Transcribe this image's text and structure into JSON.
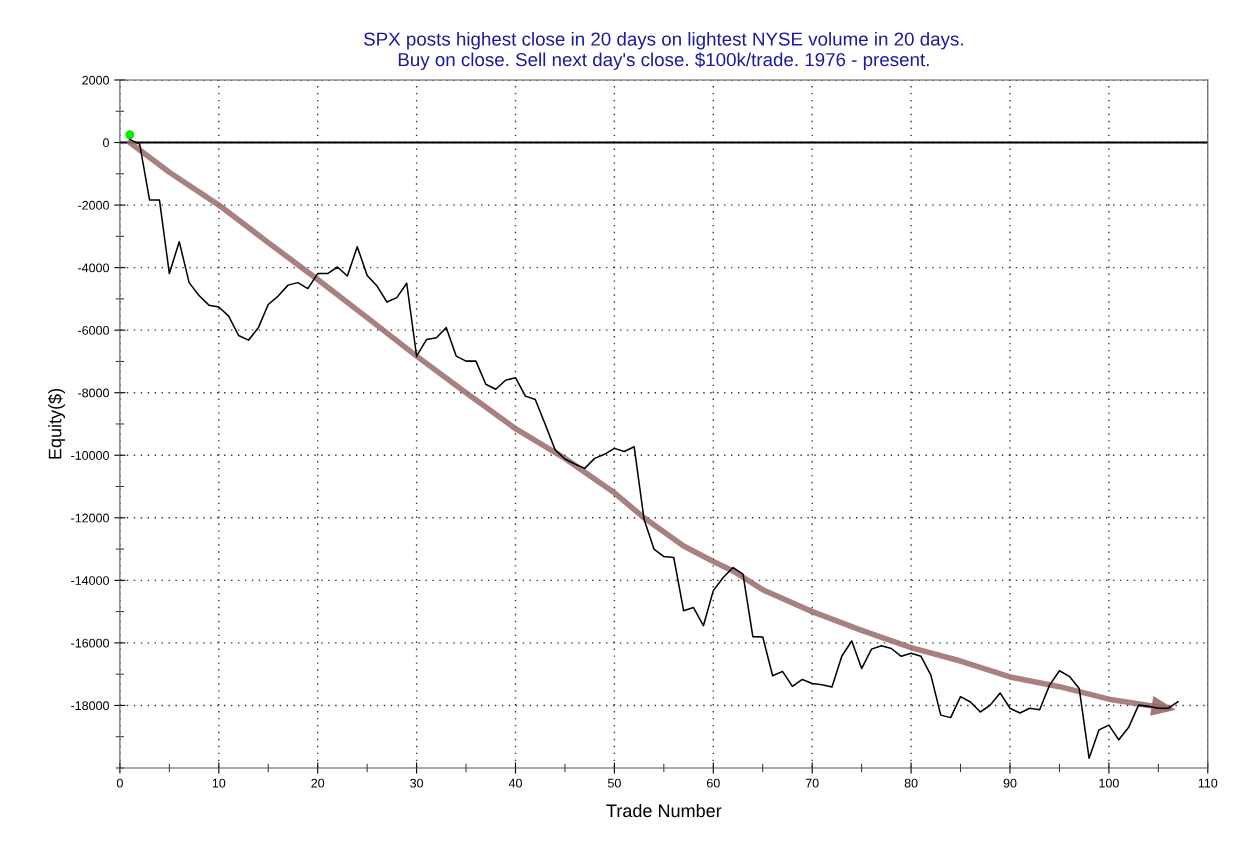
{
  "chart_data": {
    "type": "line",
    "title": "SPX posts highest close in 20 days on lightest NYSE volume in 20 days.\nBuy on close. Sell next day's close. $100k/trade. 1976 - present.",
    "xlabel": "Trade Number",
    "ylabel": "Equity($)",
    "series": [
      {
        "color": "#000000",
        "x": [
          1,
          2,
          3,
          4,
          5,
          6,
          7,
          8,
          9,
          10,
          11,
          12,
          13,
          14,
          15,
          16,
          17,
          18,
          19,
          20,
          21,
          22,
          23,
          24,
          25,
          26,
          27,
          28,
          29,
          30,
          31,
          32,
          33,
          34,
          35,
          36,
          37,
          38,
          39,
          40,
          41,
          42,
          43,
          44,
          45,
          46,
          47,
          48,
          49,
          50,
          51,
          52,
          53,
          54,
          55,
          56,
          57,
          58,
          59,
          60,
          61,
          62,
          63,
          64,
          65,
          66,
          67,
          68,
          69,
          70,
          71,
          72,
          73,
          74,
          75,
          76,
          77,
          78,
          79,
          80,
          81,
          82,
          83,
          84,
          85,
          86,
          87,
          88,
          89,
          90,
          91,
          92,
          93,
          94,
          95,
          96,
          97,
          98,
          99,
          100,
          101,
          102,
          103,
          104,
          105,
          106,
          107
        ],
        "values": [
          100,
          -50,
          -1840,
          -1840,
          -4190,
          -3170,
          -4480,
          -4890,
          -5200,
          -5260,
          -5550,
          -6170,
          -6320,
          -5920,
          -5180,
          -4910,
          -4560,
          -4480,
          -4670,
          -4190,
          -4190,
          -3980,
          -4270,
          -3330,
          -4250,
          -4590,
          -5100,
          -4960,
          -4500,
          -6830,
          -6300,
          -6240,
          -5920,
          -6830,
          -6990,
          -6990,
          -7730,
          -7890,
          -7600,
          -7520,
          -8110,
          -8220,
          -9010,
          -9820,
          -10120,
          -10280,
          -10420,
          -10100,
          -9970,
          -9780,
          -9880,
          -9730,
          -12050,
          -13000,
          -13240,
          -13270,
          -14970,
          -14870,
          -15450,
          -14330,
          -13910,
          -13590,
          -13800,
          -15800,
          -15810,
          -17050,
          -16910,
          -17390,
          -17170,
          -17300,
          -17340,
          -17410,
          -16420,
          -15940,
          -16820,
          -16200,
          -16090,
          -16180,
          -16430,
          -16330,
          -16430,
          -17030,
          -18310,
          -18390,
          -17720,
          -17890,
          -18210,
          -17990,
          -17600,
          -18090,
          -18240,
          -18090,
          -18140,
          -17350,
          -16890,
          -17070,
          -17460,
          -19690,
          -18780,
          -18630,
          -19100,
          -18700,
          -17990,
          -18030,
          -18090,
          -18090,
          -17880
        ]
      },
      {
        "type": "scatter",
        "color": "#00ee00",
        "x": [
          1
        ],
        "values": [
          250
        ]
      },
      {
        "type": "line",
        "color": "#9a6a6a",
        "x": [
          1,
          5,
          10,
          15,
          20,
          25,
          30,
          35,
          40,
          45,
          50,
          53,
          57,
          60,
          62,
          65,
          70,
          75,
          80,
          85,
          90,
          95,
          100,
          106
        ],
        "values": [
          0,
          -950,
          -2000,
          -3200,
          -4380,
          -5600,
          -6830,
          -8000,
          -9150,
          -10100,
          -11200,
          -12000,
          -12900,
          -13400,
          -13700,
          -14300,
          -15000,
          -15600,
          -16150,
          -16580,
          -17090,
          -17400,
          -17800,
          -18100
        ]
      }
    ],
    "xlim": [
      0,
      110
    ],
    "xticks": [
      0,
      10,
      20,
      30,
      40,
      50,
      60,
      70,
      80,
      90,
      100,
      110
    ],
    "ylim": [
      -20000,
      2000
    ],
    "yticks": [
      -18000,
      -16000,
      -14000,
      -12000,
      -10000,
      -8000,
      -6000,
      -4000,
      -2000,
      0,
      2000
    ],
    "ref_lines": [
      {
        "axis": "y",
        "value": 0,
        "color": "#000000"
      }
    ],
    "grid": true,
    "marker": "none"
  }
}
